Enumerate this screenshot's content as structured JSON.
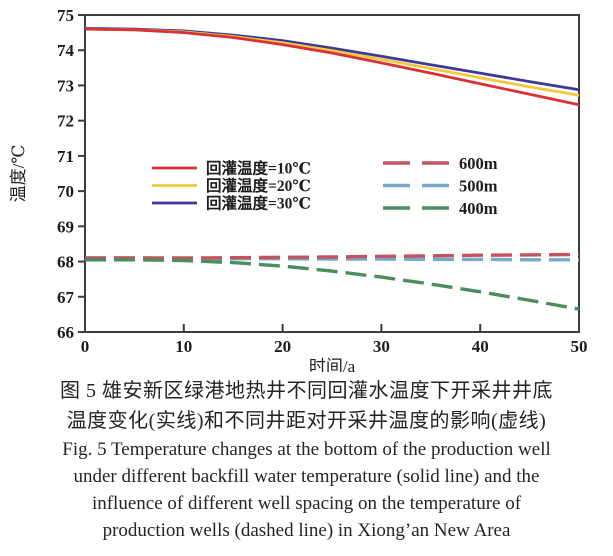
{
  "caption": {
    "zh_line1": "图 5  雄安新区绿港地热井不同回灌水温度下开采井井底",
    "zh_line2": "温度变化(实线)和不同井距对开采井温度的影响(虚线)",
    "en_line1": "Fig. 5  Temperature changes at the bottom of the production well",
    "en_line2": "under different backfill water temperature (solid line) and the",
    "en_line3": "influence of different well spacing on the temperature of",
    "en_line4": "production wells (dashed line) in Xiong’an New Area"
  },
  "chart_data": {
    "type": "line",
    "title": "",
    "xlabel": "时间/a",
    "ylabel": "温度/℃",
    "xlim": [
      0,
      50
    ],
    "ylim": [
      66,
      75
    ],
    "xticks": [
      0,
      10,
      20,
      30,
      40,
      50
    ],
    "yticks": [
      66,
      67,
      68,
      69,
      70,
      71,
      72,
      73,
      74,
      75
    ],
    "grid": false,
    "legend_position": "inside: solid group center-left, dashed group center-right",
    "x": [
      0,
      5,
      10,
      15,
      20,
      25,
      30,
      35,
      40,
      45,
      50
    ],
    "series": [
      {
        "name": "回灌温度=10℃",
        "group": "solid",
        "color": "#d93138",
        "values": [
          74.6,
          74.58,
          74.5,
          74.36,
          74.16,
          73.92,
          73.64,
          73.35,
          73.05,
          72.75,
          72.45
        ]
      },
      {
        "name": "回灌温度=20℃",
        "group": "solid",
        "color": "#f3c73e",
        "values": [
          74.6,
          74.58,
          74.52,
          74.39,
          74.21,
          73.99,
          73.74,
          73.48,
          73.22,
          72.96,
          72.72
        ]
      },
      {
        "name": "回灌温度=30℃",
        "group": "solid",
        "color": "#3d3a97",
        "values": [
          74.62,
          74.6,
          74.55,
          74.43,
          74.27,
          74.06,
          73.83,
          73.59,
          73.35,
          73.11,
          72.88
        ]
      },
      {
        "name": "600m",
        "group": "dashed",
        "color": "#c4525f",
        "values": [
          68.1,
          68.1,
          68.1,
          68.11,
          68.12,
          68.13,
          68.15,
          68.16,
          68.18,
          68.19,
          68.2
        ]
      },
      {
        "name": "500m",
        "group": "dashed",
        "color": "#75aac9",
        "values": [
          68.1,
          68.1,
          68.09,
          68.08,
          68.08,
          68.07,
          68.07,
          68.06,
          68.06,
          68.05,
          68.05
        ]
      },
      {
        "name": "400m",
        "group": "dashed",
        "color": "#4b8d5d",
        "values": [
          68.05,
          68.05,
          68.03,
          67.97,
          67.87,
          67.73,
          67.56,
          67.36,
          67.14,
          66.9,
          66.65
        ]
      }
    ]
  }
}
